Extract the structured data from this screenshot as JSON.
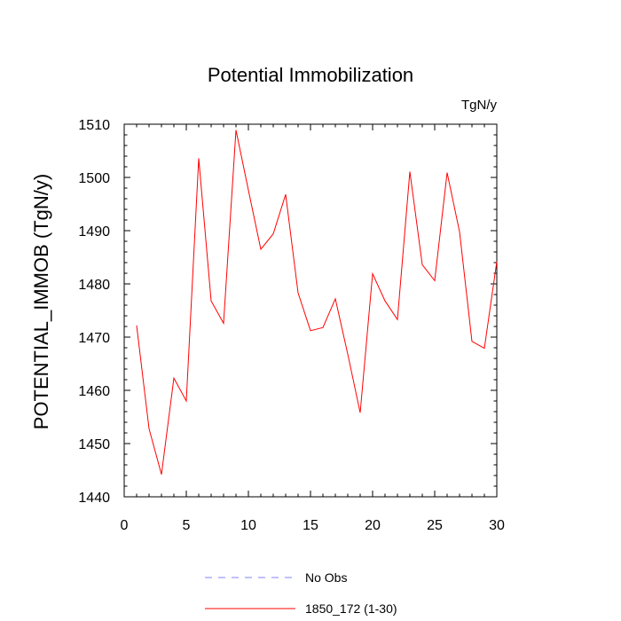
{
  "chart_data": {
    "type": "line",
    "title": "Potential Immobilization",
    "units": "TgN/y",
    "xlabel": "",
    "ylabel": "POTENTIAL_IMMOB  (TgN/y)",
    "xlim": [
      0,
      30
    ],
    "ylim": [
      1440,
      1510
    ],
    "x_ticks": [
      0,
      5,
      10,
      15,
      20,
      25,
      30
    ],
    "y_ticks": [
      1440,
      1450,
      1460,
      1470,
      1480,
      1490,
      1500,
      1510
    ],
    "grid": false,
    "legend_position": "bottom",
    "series": [
      {
        "name": "No Obs",
        "color": "#8080ff",
        "style": "dashed",
        "x": [],
        "y": []
      },
      {
        "name": "1850_172 (1-30)",
        "color": "#ff0000",
        "style": "solid",
        "x": [
          1,
          2,
          3,
          4,
          5,
          6,
          7,
          8,
          9,
          10,
          11,
          12,
          13,
          14,
          15,
          16,
          17,
          18,
          19,
          20,
          21,
          22,
          23,
          24,
          25,
          26,
          27,
          28,
          29,
          30
        ],
        "y": [
          1472.2,
          1452.8,
          1444.2,
          1462.3,
          1458.0,
          1503.6,
          1476.8,
          1472.6,
          1508.9,
          1497.6,
          1486.5,
          1489.4,
          1496.8,
          1478.3,
          1471.2,
          1471.8,
          1477.2,
          1466.8,
          1455.8,
          1481.9,
          1476.8,
          1473.3,
          1501.1,
          1483.6,
          1480.6,
          1500.9,
          1489.8,
          1469.2,
          1467.9,
          1484.2
        ]
      }
    ]
  }
}
